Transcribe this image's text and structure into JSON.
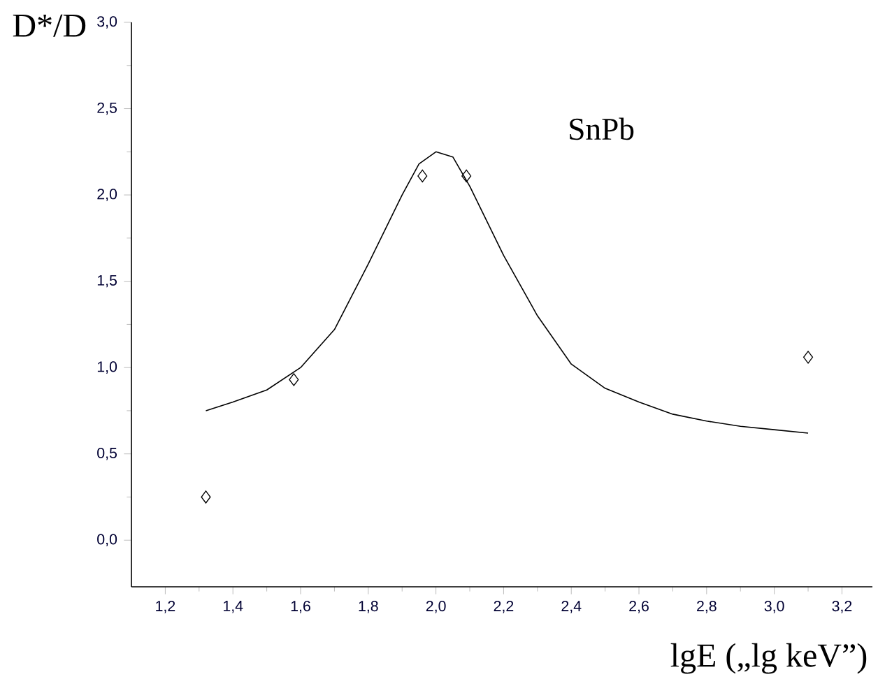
{
  "chart_data": {
    "type": "scatter",
    "xlabel": "lgE („lg keV”)",
    "ylabel": "D*/D",
    "annotations": [
      "SnPb"
    ],
    "xlim": [
      1.1,
      3.29
    ],
    "ylim": [
      -0.27,
      3.0
    ],
    "xticks": [
      {
        "value": 1.2,
        "label": "1,2"
      },
      {
        "value": 1.4,
        "label": "1,4"
      },
      {
        "value": 1.6,
        "label": "1,6"
      },
      {
        "value": 1.8,
        "label": "1,8"
      },
      {
        "value": 2.0,
        "label": "2,0"
      },
      {
        "value": 2.2,
        "label": "2,2"
      },
      {
        "value": 2.4,
        "label": "2,4"
      },
      {
        "value": 2.6,
        "label": "2,6"
      },
      {
        "value": 2.8,
        "label": "2,8"
      },
      {
        "value": 3.0,
        "label": "3,0"
      },
      {
        "value": 3.2,
        "label": "3,2"
      }
    ],
    "yticks": [
      {
        "value": 0.0,
        "label": "0,0"
      },
      {
        "value": 0.5,
        "label": "0,5"
      },
      {
        "value": 1.0,
        "label": "1,0"
      },
      {
        "value": 1.5,
        "label": "1,5"
      },
      {
        "value": 2.0,
        "label": "2,0"
      },
      {
        "value": 2.5,
        "label": "2,5"
      },
      {
        "value": 3.0,
        "label": "3,0"
      }
    ],
    "series": [
      {
        "type": "scatter",
        "marker": "diamond",
        "color": "#000000",
        "x": [
          1.32,
          1.58,
          1.96,
          2.09,
          3.1
        ],
        "values": [
          0.25,
          0.93,
          2.11,
          2.11,
          1.06
        ]
      },
      {
        "type": "line",
        "marker": "none",
        "line_style": "solid",
        "color": "#000000",
        "x": [
          1.32,
          1.4,
          1.5,
          1.6,
          1.7,
          1.8,
          1.9,
          1.95,
          2.0,
          2.05,
          2.1,
          2.2,
          2.3,
          2.4,
          2.5,
          2.6,
          2.7,
          2.8,
          2.9,
          3.0,
          3.1
        ],
        "values": [
          0.75,
          0.8,
          0.87,
          1.0,
          1.22,
          1.6,
          2.0,
          2.18,
          2.25,
          2.22,
          2.05,
          1.65,
          1.3,
          1.02,
          0.88,
          0.8,
          0.73,
          0.69,
          0.66,
          0.64,
          0.62
        ]
      }
    ]
  }
}
